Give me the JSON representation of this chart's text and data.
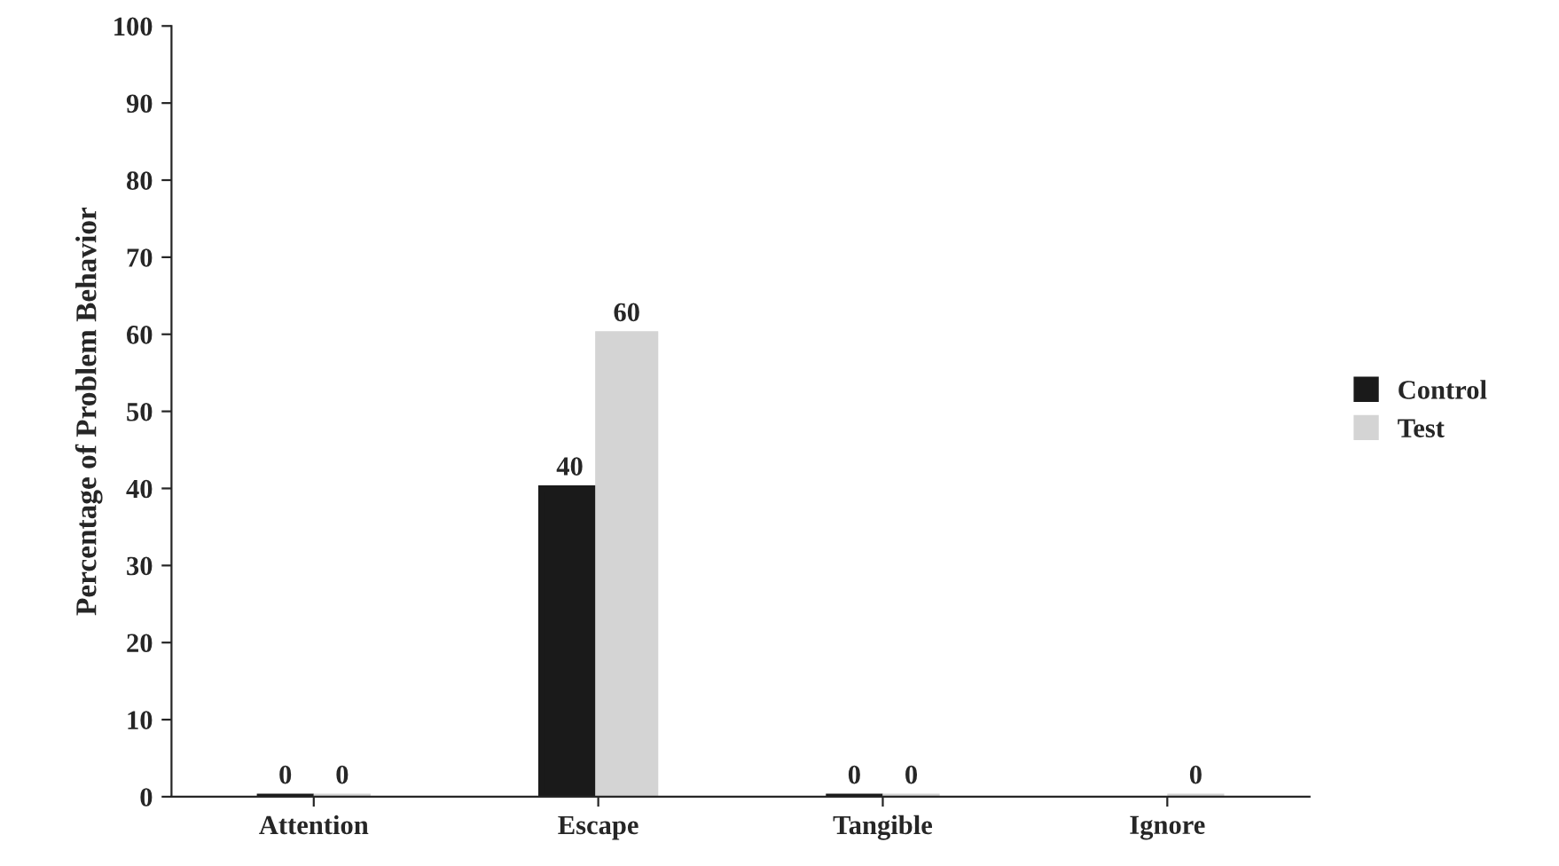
{
  "chart_data": {
    "type": "bar",
    "ylabel": "Percentage of Problem Behavior",
    "categories": [
      "Attention",
      "Escape",
      "Tangible",
      "Ignore"
    ],
    "series": [
      {
        "name": "Control",
        "color": "#1a1a1a",
        "values": [
          0,
          40,
          0,
          null
        ]
      },
      {
        "name": "Test",
        "color": "#d4d4d4",
        "values": [
          0,
          60,
          0,
          0
        ]
      }
    ],
    "ylim": [
      0,
      100
    ],
    "yticks": [
      0,
      10,
      20,
      30,
      40,
      50,
      60,
      70,
      80,
      90,
      100
    ],
    "data_labels": true,
    "grid": false,
    "legend": "right"
  }
}
